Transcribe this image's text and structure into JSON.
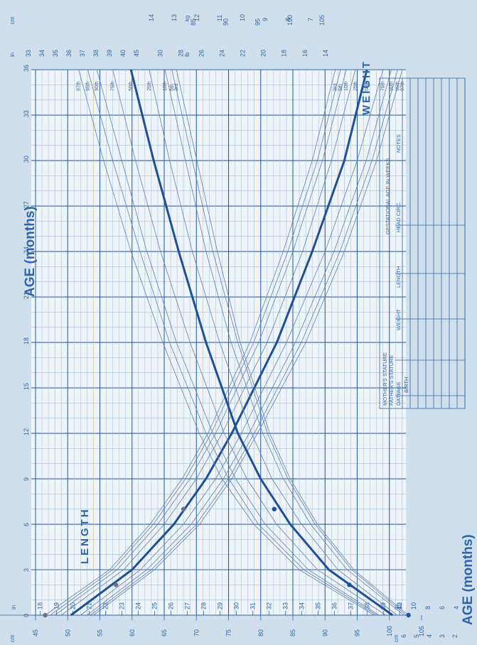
{
  "chart_data": {
    "type": "line",
    "title": "AGE (months)",
    "axis_title_bottom": "AGE (months)",
    "x_axis": {
      "label": "AGE (months)",
      "range": [
        0,
        36
      ],
      "ticks": [
        0,
        3,
        6,
        9,
        12,
        15,
        18,
        21,
        24,
        27,
        30,
        33,
        36
      ]
    },
    "length_panel": {
      "title": "LENGTH",
      "cm_label": "cm",
      "in_label": "in",
      "cm_ticks": [
        45,
        50,
        55,
        60,
        65,
        70,
        75,
        80,
        85,
        90,
        95,
        100,
        105
      ],
      "in_ticks": [
        17,
        18,
        19,
        20,
        21,
        22,
        23,
        24,
        25,
        26,
        27,
        28,
        29,
        30,
        31,
        32,
        33,
        34,
        35,
        36,
        37,
        38,
        39,
        40,
        41
      ],
      "top_cm_ticks": [
        85,
        90,
        95,
        100,
        105
      ],
      "top_in_ticks": [
        33,
        34,
        35,
        36,
        37,
        38,
        39,
        40,
        45
      ],
      "top_in_unit": "in",
      "top_cm_unit": "cm",
      "percentile_labels": [
        "97th",
        "95th",
        "90th",
        "75th",
        "50th",
        "25th",
        "10th",
        "5th",
        "3rd"
      ],
      "series": [
        {
          "name": "97th",
          "x": [
            0,
            3,
            6,
            9,
            12,
            18,
            24,
            30,
            36
          ],
          "y": [
            54,
            63.5,
            70.5,
            75.5,
            79.5,
            87,
            93,
            98,
            102
          ]
        },
        {
          "name": "95th",
          "x": [
            0,
            3,
            6,
            9,
            12,
            18,
            24,
            30,
            36
          ],
          "y": [
            53.5,
            63,
            70,
            75,
            79,
            86.3,
            92.3,
            97.3,
            101.3
          ]
        },
        {
          "name": "90th",
          "x": [
            0,
            3,
            6,
            9,
            12,
            18,
            24,
            30,
            36
          ],
          "y": [
            53,
            62.3,
            69.2,
            74.2,
            78.2,
            85.4,
            91.4,
            96.4,
            100.3
          ]
        },
        {
          "name": "75th",
          "x": [
            0,
            3,
            6,
            9,
            12,
            18,
            24,
            30,
            36
          ],
          "y": [
            52,
            61.3,
            68,
            73,
            77,
            84,
            90,
            95,
            99
          ]
        },
        {
          "name": "50th",
          "x": [
            0,
            3,
            6,
            9,
            12,
            18,
            24,
            30,
            36
          ],
          "y": [
            50.5,
            60,
            66.5,
            71.5,
            75.5,
            82.5,
            88,
            93,
            96.5
          ]
        },
        {
          "name": "25th",
          "x": [
            0,
            3,
            6,
            9,
            12,
            18,
            24,
            30,
            36
          ],
          "y": [
            49,
            58.7,
            65,
            70,
            74,
            81,
            86.5,
            91,
            94.7
          ]
        },
        {
          "name": "10th",
          "x": [
            0,
            3,
            6,
            9,
            12,
            18,
            24,
            30,
            36
          ],
          "y": [
            48,
            57.7,
            64,
            69,
            73,
            79.7,
            85,
            89.6,
            93.3
          ]
        },
        {
          "name": "5th",
          "x": [
            0,
            3,
            6,
            9,
            12,
            18,
            24,
            30,
            36
          ],
          "y": [
            47.3,
            57,
            63.3,
            68.3,
            72.3,
            78.9,
            84.2,
            88.8,
            92.4
          ]
        },
        {
          "name": "3rd",
          "x": [
            0,
            3,
            6,
            9,
            12,
            18,
            24,
            30,
            36
          ],
          "y": [
            46.5,
            56.5,
            62.8,
            67.8,
            71.8,
            78.3,
            83.5,
            88,
            91.6
          ]
        }
      ],
      "points": [
        {
          "x": 0,
          "y": 46.5
        },
        {
          "x": 2,
          "y": 57.5
        },
        {
          "x": 7,
          "y": 68
        }
      ]
    },
    "weight_panel": {
      "title": "WEIGHT",
      "kg_label": "kg",
      "lb_label": "lb",
      "kg_ticks_top": [
        7,
        8,
        9,
        10,
        11,
        12,
        13,
        14,
        15,
        16,
        17,
        18,
        19,
        20
      ],
      "lb_ticks_top": [
        14,
        16,
        18,
        20,
        22,
        24,
        26,
        28,
        30,
        32,
        34,
        36,
        38,
        40,
        42,
        44
      ],
      "kg_ticks_bottom": [
        2,
        3,
        4,
        5,
        6
      ],
      "lb_ticks_bottom": [
        4,
        6,
        8,
        10,
        12
      ],
      "percentile_labels": [
        "97th",
        "95th",
        "90th",
        "75th",
        "50th",
        "25th",
        "10th",
        "5th",
        "3rd"
      ],
      "series": [
        {
          "name": "97th",
          "x": [
            0,
            3,
            6,
            9,
            12,
            18,
            24,
            30,
            36
          ],
          "y": [
            4.2,
            7.5,
            9.5,
            10.9,
            11.9,
            13.5,
            14.9,
            16.1,
            17.2
          ]
        },
        {
          "name": "95th",
          "x": [
            0,
            3,
            6,
            9,
            12,
            18,
            24,
            30,
            36
          ],
          "y": [
            4.1,
            7.3,
            9.3,
            10.6,
            11.6,
            13.2,
            14.5,
            15.7,
            16.8
          ]
        },
        {
          "name": "90th",
          "x": [
            0,
            3,
            6,
            9,
            12,
            18,
            24,
            30,
            36
          ],
          "y": [
            4,
            7.1,
            9,
            10.3,
            11.3,
            12.9,
            14.2,
            15.3,
            16.4
          ]
        },
        {
          "name": "75th",
          "x": [
            0,
            3,
            6,
            9,
            12,
            18,
            24,
            30,
            36
          ],
          "y": [
            3.7,
            6.7,
            8.5,
            9.8,
            10.8,
            12.3,
            13.6,
            14.7,
            15.7
          ]
        },
        {
          "name": "50th",
          "x": [
            0,
            3,
            6,
            9,
            12,
            18,
            24,
            30,
            36
          ],
          "y": [
            3.4,
            6.2,
            7.9,
            9.2,
            10.2,
            11.6,
            12.8,
            13.9,
            14.9
          ]
        },
        {
          "name": "25th",
          "x": [
            0,
            3,
            6,
            9,
            12,
            18,
            24,
            30,
            36
          ],
          "y": [
            3.2,
            5.8,
            7.4,
            8.7,
            9.6,
            11,
            12.2,
            13.2,
            14.1
          ]
        },
        {
          "name": "10th",
          "x": [
            0,
            3,
            6,
            9,
            12,
            18,
            24,
            30,
            36
          ],
          "y": [
            2.9,
            5.4,
            7,
            8.2,
            9.1,
            10.5,
            11.6,
            12.5,
            13.4
          ]
        },
        {
          "name": "5th",
          "x": [
            0,
            3,
            6,
            9,
            12,
            18,
            24,
            30,
            36
          ],
          "y": [
            2.8,
            5.2,
            6.8,
            8,
            8.9,
            10.2,
            11.3,
            12.2,
            13.1
          ]
        },
        {
          "name": "3rd",
          "x": [
            0,
            3,
            6,
            9,
            12,
            18,
            24,
            30,
            36
          ],
          "y": [
            2.7,
            5.1,
            6.7,
            7.9,
            8.8,
            10.1,
            11.1,
            12,
            12.9
          ]
        }
      ],
      "points": [
        {
          "x": 0,
          "y": 2.7
        },
        {
          "x": 2,
          "y": 5.3
        },
        {
          "x": 7,
          "y": 8.6
        }
      ]
    }
  },
  "info_table": {
    "line1": "MOTHER'S STATURE",
    "line2": "FATHER'S STATURE",
    "gestational": "GESTATIONAL AGE IN WEEKS",
    "headers": [
      "DATE",
      "AGE",
      "WEIGHT",
      "LENGTH",
      "HEAD CIRC.",
      "NOTES"
    ],
    "first_row_age": "BIRTH"
  }
}
